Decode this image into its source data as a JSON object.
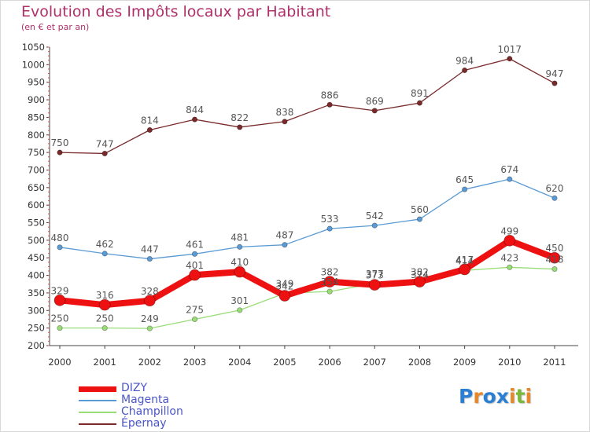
{
  "title": "Evolution des Impôts locaux par Habitant",
  "subtitle": "(en € et par an)",
  "chart_data": {
    "type": "line",
    "x": [
      "2000",
      "2001",
      "2002",
      "2003",
      "2004",
      "2005",
      "2006",
      "2007",
      "2008",
      "2009",
      "2010",
      "2011"
    ],
    "yticks": [
      200,
      250,
      300,
      350,
      400,
      450,
      500,
      550,
      600,
      650,
      700,
      750,
      800,
      850,
      900,
      950,
      1000,
      1050
    ],
    "ylim": [
      200,
      1050
    ],
    "grid": false,
    "legend_position": "bottom-left",
    "series": [
      {
        "name": "DIZY",
        "color": "#ee1111",
        "values": [
          329,
          316,
          328,
          401,
          410,
          342,
          382,
          373,
          382,
          417,
          499,
          450
        ]
      },
      {
        "name": "Magenta",
        "color": "#5b9bd5",
        "values": [
          480,
          462,
          447,
          461,
          481,
          487,
          533,
          542,
          560,
          645,
          674,
          620
        ]
      },
      {
        "name": "Champillon",
        "color": "#99dd77",
        "values": [
          250,
          250,
          249,
          275,
          301,
          349,
          354,
          377,
          374,
          414,
          423,
          418
        ]
      },
      {
        "name": "Épernay",
        "color": "#7a2a2a",
        "values": [
          750,
          747,
          814,
          844,
          822,
          838,
          886,
          869,
          891,
          984,
          1017,
          947
        ]
      }
    ]
  },
  "logo": {
    "text": "Proxiti",
    "colors": [
      "#2a7fd4",
      "#e8872a",
      "#2a7fd4",
      "#2a7fd4",
      "#e8872a",
      "#7ab83a",
      "#e8872a"
    ]
  }
}
